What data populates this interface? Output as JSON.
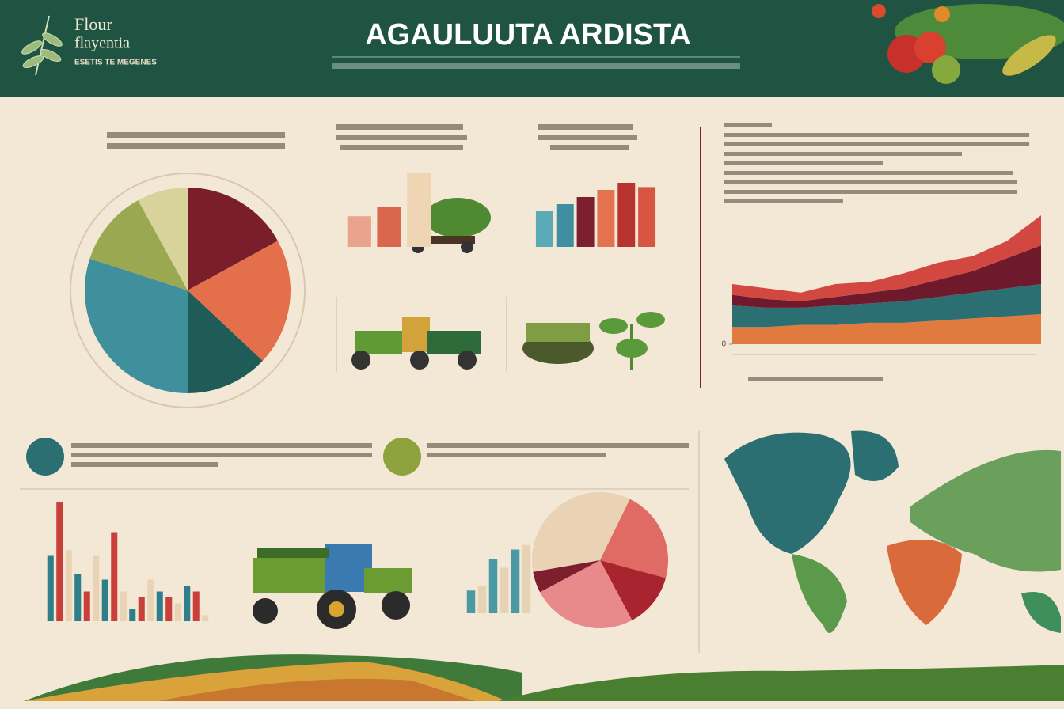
{
  "header": {
    "title": "AGAULUUTA ARDISTA",
    "logo_line1": "Flour",
    "logo_line2": "flayentia",
    "tagline": "ESETIS TE MEGENES"
  },
  "chart_data": [
    {
      "type": "pie",
      "values": [
        17,
        20,
        13,
        30,
        12,
        8
      ],
      "colors": [
        "#7a1e2c",
        "#e4704b",
        "#1f5c57",
        "#3f8f9c",
        "#9aa852",
        "#d8d39a"
      ]
    },
    {
      "type": "bar",
      "values": [
        20,
        26,
        48
      ],
      "colors": [
        "#eaa48e",
        "#d9674e",
        "#f0d5b5"
      ],
      "ylim": [
        0,
        50
      ]
    },
    {
      "type": "bar",
      "values": [
        25,
        30,
        35,
        40,
        45,
        42
      ],
      "colors": [
        "#5aabb5",
        "#3f8fa0",
        "#7d1f2f",
        "#e4724f",
        "#b8352f",
        "#d65642"
      ],
      "ylim": [
        0,
        50
      ]
    },
    {
      "type": "area",
      "categories": [
        null,
        null,
        null,
        null,
        null,
        null,
        null,
        null,
        null,
        null
      ],
      "ylim": [
        0,
        70
      ],
      "yticks": [
        0
      ],
      "series": [
        {
          "color": "#e07a3e",
          "values": [
            8,
            8,
            9,
            9,
            10,
            10,
            11,
            12,
            13,
            14
          ]
        },
        {
          "color": "#2c6f73",
          "values": [
            10,
            9,
            8,
            9,
            9,
            10,
            11,
            12,
            13,
            14
          ]
        },
        {
          "color": "#6e1a2c",
          "values": [
            5,
            4,
            3,
            4,
            5,
            6,
            8,
            10,
            14,
            18
          ]
        },
        {
          "color": "#d2473f",
          "values": [
            5,
            5,
            4,
            6,
            5,
            7,
            8,
            7,
            8,
            14
          ]
        }
      ]
    },
    {
      "type": "bar",
      "values": [
        55,
        100,
        60,
        40,
        25,
        55,
        35,
        75,
        25,
        10,
        20,
        35,
        25,
        20,
        15,
        30,
        25,
        5
      ],
      "colors": [
        "#2f7f8a",
        "#c9403b",
        "#ead2b4"
      ],
      "ylim": [
        0,
        100
      ]
    },
    {
      "type": "bar",
      "values": [
        25,
        30,
        60,
        50,
        70,
        75
      ],
      "colors": [
        "#4a9aa5",
        "#e6d3b6"
      ],
      "ylim": [
        0,
        100
      ]
    },
    {
      "type": "pie",
      "values": [
        35,
        22,
        13,
        25,
        5
      ],
      "colors": [
        "#ead3b4",
        "#e06a64",
        "#a8242f",
        "#e8898c",
        "#7d1f2f"
      ]
    }
  ]
}
